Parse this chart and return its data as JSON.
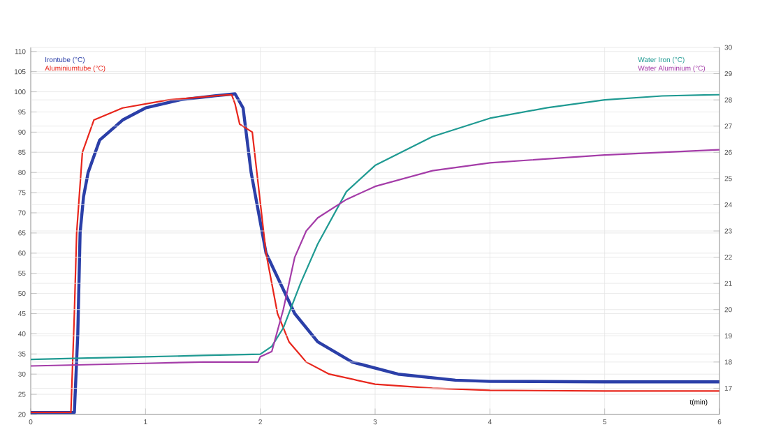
{
  "chart_data": {
    "type": "line",
    "xlabel": "t(min)",
    "xlim": [
      0,
      6
    ],
    "xticks": [
      0,
      1,
      2,
      3,
      4,
      5,
      6
    ],
    "ylim": [
      20,
      111
    ],
    "yticks": [
      20,
      25,
      30,
      35,
      40,
      45,
      50,
      55,
      60,
      65,
      70,
      75,
      80,
      85,
      90,
      95,
      100,
      105,
      110
    ],
    "y2lim": [
      16,
      30
    ],
    "y2ticks": [
      17,
      18,
      19,
      20,
      21,
      22,
      23,
      24,
      25,
      26,
      27,
      28,
      29,
      30
    ],
    "grid": true,
    "legend": "top left",
    "marker": "none",
    "line_style": "solid",
    "series": [
      {
        "name": "Irontube (°C)",
        "color": "#2b3fa8",
        "x": [
          0,
          0.38,
          0.41,
          0.43,
          0.46,
          0.5,
          0.6,
          0.8,
          1.0,
          1.3,
          1.6,
          1.78,
          1.85,
          1.92,
          2.05,
          2.3,
          2.5,
          2.8,
          3.2,
          3.7,
          4,
          5,
          6
        ],
        "values": [
          20.5,
          20.5,
          40,
          65,
          74,
          80,
          88,
          93,
          96,
          98,
          99,
          99.5,
          96,
          80,
          60,
          45,
          38,
          33,
          30,
          28.5,
          28.2,
          28.1,
          28.1
        ]
      },
      {
        "name": "Aluminiumtube (°C)",
        "color": "#e8261c",
        "x": [
          0,
          0.35,
          0.38,
          0.4,
          0.45,
          0.55,
          0.8,
          1.2,
          1.6,
          1.75,
          1.78,
          1.82,
          1.93,
          1.97,
          2.05,
          2.15,
          2.25,
          2.4,
          2.6,
          3.0,
          3.5,
          4,
          5,
          6
        ],
        "values": [
          20.5,
          20.5,
          45,
          65,
          85,
          93,
          96,
          98,
          99,
          99.3,
          97,
          92,
          90,
          80,
          60,
          45,
          38,
          33,
          30,
          27.5,
          26.5,
          26,
          25.8,
          25.8
        ]
      },
      {
        "name": "Water Iron (°C)",
        "color": "#1f9a92",
        "axis": "y2",
        "x": [
          0,
          0.5,
          1,
          1.5,
          2,
          2.1,
          2.2,
          2.35,
          2.5,
          2.75,
          3.0,
          3.5,
          4.0,
          4.5,
          5,
          5.5,
          6
        ],
        "values": [
          18.1,
          18.15,
          18.2,
          18.25,
          18.3,
          18.6,
          19.3,
          21,
          22.5,
          24.5,
          25.5,
          26.6,
          27.3,
          27.7,
          28,
          28.15,
          28.2
        ]
      },
      {
        "name": "Water Aluminium (°C)",
        "color": "#a43ca8",
        "axis": "y2",
        "x": [
          0,
          0.5,
          1,
          1.5,
          1.98,
          2.0,
          2.1,
          2.2,
          2.3,
          2.4,
          2.5,
          2.75,
          3.0,
          3.5,
          4,
          5,
          6
        ],
        "values": [
          17.85,
          17.9,
          17.95,
          18.0,
          18.0,
          18.2,
          18.4,
          20,
          22,
          23,
          23.5,
          24.2,
          24.7,
          25.3,
          25.6,
          25.9,
          26.1
        ]
      }
    ]
  }
}
